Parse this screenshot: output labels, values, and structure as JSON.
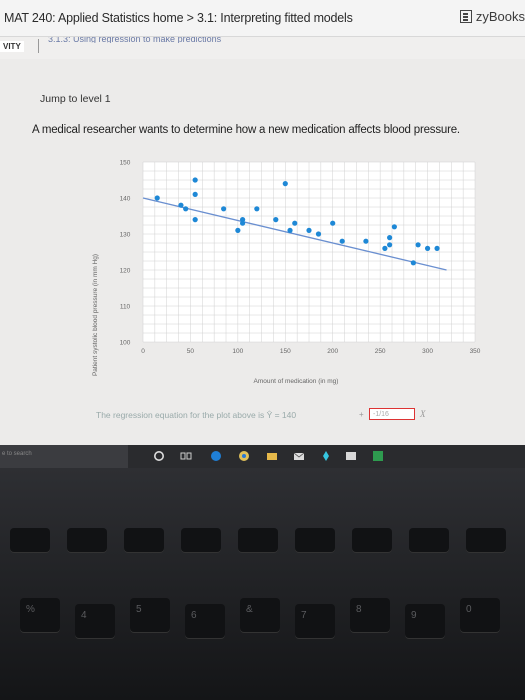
{
  "header": {
    "breadcrumb": "MAT 240: Applied Statistics home > 3.1: Interpreting fitted models",
    "brand": "zyBooks"
  },
  "subbar": {
    "tag": "VITY",
    "section_text": "3.1.3: Using regression to make predictions"
  },
  "activity": {
    "jump_label": "Jump to level 1",
    "question": "A medical researcher wants to determine how a new medication affects blood pressure."
  },
  "chart_data": {
    "type": "scatter",
    "title": "",
    "xlabel": "Amount of medication (in mg)",
    "ylabel": "Patient systolic blood pressure (in mm Hg)",
    "xlim": [
      0,
      350
    ],
    "ylim": [
      100,
      150
    ],
    "x_ticks": [
      "0",
      "50",
      "100",
      "150",
      "200",
      "250",
      "300",
      "350"
    ],
    "y_ticks": [
      "100",
      "110",
      "120",
      "130",
      "140",
      "150"
    ],
    "grid": true,
    "point_color": "#1e88d6",
    "line_color": "#6a8fd0",
    "points": [
      {
        "x": 15,
        "y": 140
      },
      {
        "x": 40,
        "y": 138
      },
      {
        "x": 45,
        "y": 137
      },
      {
        "x": 55,
        "y": 141
      },
      {
        "x": 55,
        "y": 134
      },
      {
        "x": 55,
        "y": 145
      },
      {
        "x": 85,
        "y": 137
      },
      {
        "x": 100,
        "y": 131
      },
      {
        "x": 105,
        "y": 134
      },
      {
        "x": 105,
        "y": 133
      },
      {
        "x": 120,
        "y": 137
      },
      {
        "x": 140,
        "y": 134
      },
      {
        "x": 150,
        "y": 144
      },
      {
        "x": 155,
        "y": 131
      },
      {
        "x": 160,
        "y": 133
      },
      {
        "x": 175,
        "y": 131
      },
      {
        "x": 185,
        "y": 130
      },
      {
        "x": 200,
        "y": 133
      },
      {
        "x": 210,
        "y": 128
      },
      {
        "x": 235,
        "y": 128
      },
      {
        "x": 255,
        "y": 126
      },
      {
        "x": 260,
        "y": 127
      },
      {
        "x": 260,
        "y": 129
      },
      {
        "x": 265,
        "y": 132
      },
      {
        "x": 285,
        "y": 122
      },
      {
        "x": 290,
        "y": 127
      },
      {
        "x": 300,
        "y": 126
      },
      {
        "x": 310,
        "y": 126
      }
    ],
    "regression_line": {
      "intercept": 140,
      "slope": -0.0625
    }
  },
  "equation": {
    "text": "The regression equation for the plot above is Ŷ = 140",
    "plus": "+",
    "input_value": "-1/16",
    "x_symbol": "X"
  },
  "taskbar": {
    "search_text": "e to search"
  },
  "keyboard": {
    "keys": [
      "%",
      "4",
      "5",
      "6",
      "&",
      "7",
      "8",
      "9",
      "0"
    ]
  }
}
